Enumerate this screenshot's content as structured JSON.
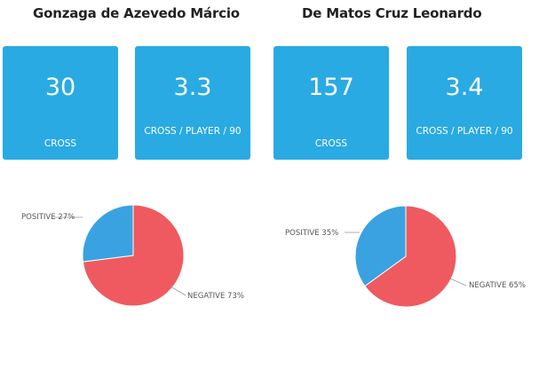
{
  "players": [
    {
      "name": "Gonzaga de Azevedo Márcio",
      "stats": [
        {
          "value": "30",
          "label": "CROSS"
        },
        {
          "value": "3.3",
          "label": "CROSS / PLAYER / 90"
        }
      ],
      "pie_labels": {
        "positive": "POSITIVE 27%",
        "negative": "NEGATIVE 73%"
      }
    },
    {
      "name": "De Matos Cruz Leonardo",
      "stats": [
        {
          "value": "157",
          "label": "CROSS"
        },
        {
          "value": "3.4",
          "label": "CROSS / PLAYER / 90"
        }
      ],
      "pie_labels": {
        "positive": "POSITIVE 35%",
        "negative": "NEGATIVE 65%"
      }
    }
  ],
  "colors": {
    "card": "#29aae2",
    "positive": "#3aa2e0",
    "negative": "#ee5a5f",
    "label": "#555555"
  },
  "chart_data": [
    {
      "type": "pie",
      "categories": [
        "POSITIVE",
        "NEGATIVE"
      ],
      "values": [
        27,
        73
      ],
      "unit": "%"
    },
    {
      "type": "pie",
      "categories": [
        "POSITIVE",
        "NEGATIVE"
      ],
      "values": [
        35,
        65
      ],
      "unit": "%"
    }
  ]
}
